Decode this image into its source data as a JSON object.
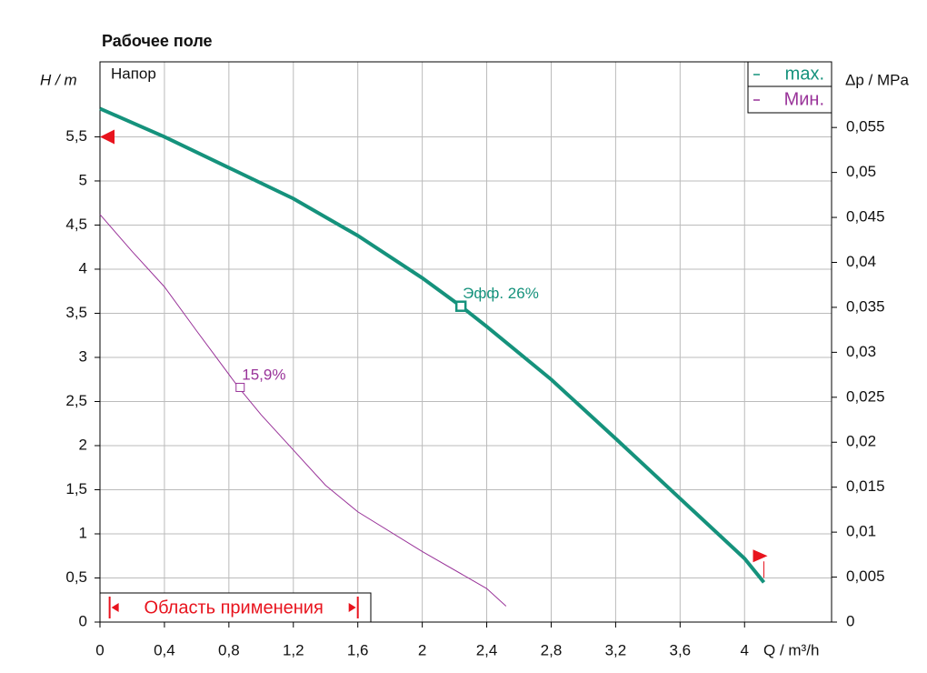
{
  "chart_data": {
    "type": "line",
    "title": "Рабочее поле",
    "subtitle": "Напор",
    "xlabel": "Q / m³/h",
    "ylabel": "H / m",
    "y2label": "Δp / MPa",
    "xlim": [
      0,
      4.54
    ],
    "ylim": [
      0,
      6.35
    ],
    "y2lim": [
      0,
      0.0623
    ],
    "xticks": [
      0,
      {
        "value": 0.4,
        "label": "0,4"
      },
      {
        "value": 0.8,
        "label": "0,8"
      },
      {
        "value": 1.2,
        "label": "1,2"
      },
      {
        "value": 1.6,
        "label": "1,6"
      },
      2,
      {
        "value": 2.4,
        "label": "2,4"
      },
      {
        "value": 2.8,
        "label": "2,8"
      },
      {
        "value": 3.2,
        "label": "3,2"
      },
      {
        "value": 3.6,
        "label": "3,6"
      },
      4
    ],
    "yticks": [
      0,
      {
        "value": 0.5,
        "label": "0,5"
      },
      1,
      {
        "value": 1.5,
        "label": "1,5"
      },
      2,
      {
        "value": 2.5,
        "label": "2,5"
      },
      3,
      {
        "value": 3.5,
        "label": "3,5"
      },
      4,
      {
        "value": 4.5,
        "label": "4,5"
      },
      5,
      {
        "value": 5.5,
        "label": "5,5"
      }
    ],
    "y2ticks": [
      0,
      {
        "value": 0.005,
        "label": "0,005"
      },
      {
        "value": 0.01,
        "label": "0,01"
      },
      {
        "value": 0.015,
        "label": "0,015"
      },
      {
        "value": 0.02,
        "label": "0,02"
      },
      {
        "value": 0.025,
        "label": "0,025"
      },
      {
        "value": 0.03,
        "label": "0,03"
      },
      {
        "value": 0.035,
        "label": "0,035"
      },
      {
        "value": 0.04,
        "label": "0,04"
      },
      {
        "value": 0.045,
        "label": "0,045"
      },
      {
        "value": 0.05,
        "label": "0,05"
      },
      {
        "value": 0.055,
        "label": "0,055"
      }
    ],
    "grid": true,
    "legend": "upper right",
    "series": [
      {
        "name": "max.",
        "color": "#15927c",
        "width": 4,
        "x": [
          0,
          0.4,
          0.8,
          1.2,
          1.6,
          2,
          2.24,
          2.4,
          2.8,
          3.2,
          3.6,
          4,
          4.12
        ],
        "values": [
          5.82,
          5.5,
          5.15,
          4.8,
          4.38,
          3.9,
          3.58,
          3.35,
          2.75,
          2.08,
          1.4,
          0.72,
          0.45
        ]
      },
      {
        "name": "Мин.",
        "color": "#993399",
        "width": 1,
        "x": [
          0,
          0.2,
          0.4,
          0.6,
          0.86,
          1,
          1.2,
          1.4,
          1.6,
          2,
          2.4,
          2.52
        ],
        "values": [
          4.62,
          4.2,
          3.8,
          3.3,
          2.66,
          2.35,
          1.95,
          1.55,
          1.25,
          0.8,
          0.38,
          0.18
        ]
      }
    ],
    "annotations": [
      {
        "text": "Эфф.  26%",
        "x": 2.24,
        "y": 3.58,
        "series": 0
      },
      {
        "text": "15,9%",
        "x": 0.87,
        "y": 2.66,
        "series": 1
      }
    ],
    "markers": [
      {
        "x": 0,
        "y": 5.5,
        "color": "#e8141e"
      },
      {
        "x": 4.12,
        "y": 0.75,
        "color": "#e8141e"
      }
    ],
    "range": {
      "label": "Область применения",
      "from": 0.06,
      "to": 1.6,
      "color": "#e8141e"
    }
  }
}
